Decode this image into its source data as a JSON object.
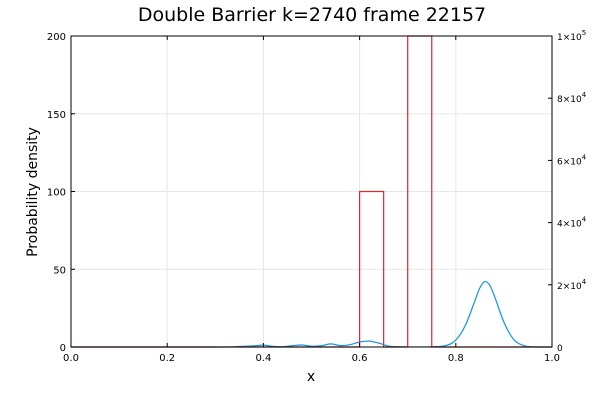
{
  "chart_data": {
    "type": "line",
    "title": "Double Barrier k=2740 frame 22157",
    "xlabel": "x",
    "ylabel": "Probability density",
    "xlim": [
      0,
      1
    ],
    "ylim": [
      0,
      200
    ],
    "y2lim": [
      0,
      100000
    ],
    "grid": true,
    "legend": "none",
    "x_ticks": [
      "0.0",
      "0.2",
      "0.4",
      "0.6",
      "0.8",
      "1.0"
    ],
    "y_ticks": [
      "0",
      "50",
      "100",
      "150",
      "200"
    ],
    "y2_ticks": [
      {
        "value": 0,
        "label": "0",
        "mantissa": "",
        "exp": ""
      },
      {
        "value": 20000,
        "label": "",
        "mantissa": "2×10",
        "exp": "4"
      },
      {
        "value": 40000,
        "label": "",
        "mantissa": "4×10",
        "exp": "4"
      },
      {
        "value": 60000,
        "label": "",
        "mantissa": "6×10",
        "exp": "4"
      },
      {
        "value": 80000,
        "label": "",
        "mantissa": "8×10",
        "exp": "4"
      },
      {
        "value": 100000,
        "label": "",
        "mantissa": "1×10",
        "exp": "5"
      }
    ],
    "series": [
      {
        "color": "#0f94e6",
        "axis": "left",
        "description": "wave packet probability density",
        "points": [
          [
            0.0,
            0.0
          ],
          [
            0.3,
            0.0
          ],
          [
            0.35,
            0.3
          ],
          [
            0.38,
            0.7
          ],
          [
            0.4,
            1.2
          ],
          [
            0.42,
            0.4
          ],
          [
            0.44,
            0.2
          ],
          [
            0.46,
            0.8
          ],
          [
            0.48,
            1.3
          ],
          [
            0.5,
            0.5
          ],
          [
            0.52,
            0.8
          ],
          [
            0.54,
            2.0
          ],
          [
            0.56,
            0.9
          ],
          [
            0.58,
            1.5
          ],
          [
            0.6,
            3.2
          ],
          [
            0.62,
            3.8
          ],
          [
            0.64,
            2.5
          ],
          [
            0.66,
            0.6
          ],
          [
            0.68,
            0.15
          ],
          [
            0.7,
            0.05
          ],
          [
            0.75,
            0.1
          ],
          [
            0.78,
            1.0
          ],
          [
            0.8,
            4.5
          ],
          [
            0.82,
            14
          ],
          [
            0.84,
            30
          ],
          [
            0.85,
            38
          ],
          [
            0.86,
            42
          ],
          [
            0.87,
            40
          ],
          [
            0.88,
            33
          ],
          [
            0.9,
            16
          ],
          [
            0.92,
            5
          ],
          [
            0.94,
            1.0
          ],
          [
            0.96,
            0.1
          ],
          [
            1.0,
            0.0
          ]
        ]
      },
      {
        "color": "#e2262b",
        "axis": "right",
        "description": "double barrier potential",
        "points": [
          [
            0.0,
            0
          ],
          [
            0.6,
            0
          ],
          [
            0.6,
            50000
          ],
          [
            0.65,
            50000
          ],
          [
            0.65,
            0
          ],
          [
            0.7,
            0
          ],
          [
            0.7,
            100000
          ],
          [
            0.75,
            100000
          ],
          [
            0.75,
            0
          ],
          [
            1.0,
            0
          ]
        ]
      }
    ]
  }
}
